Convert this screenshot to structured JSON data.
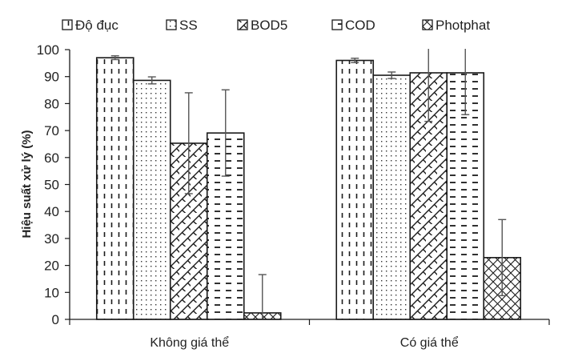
{
  "chart_data": {
    "type": "bar",
    "title": "",
    "xlabel": "",
    "ylabel": "Hiệu suất xử lý (%)",
    "ylim": [
      0,
      100
    ],
    "yticks": [
      0,
      10,
      20,
      30,
      40,
      50,
      60,
      70,
      80,
      90,
      100
    ],
    "ytick_labels": [
      "0",
      "10",
      "20",
      "30",
      "40",
      "50",
      "60",
      "70",
      "80",
      "90",
      "100"
    ],
    "grid": false,
    "legend_position": "top",
    "categories": [
      "Không giá thể",
      "Có giá thể"
    ],
    "series": [
      {
        "name": "Độ đục",
        "pattern": "vertical-dash",
        "values": [
          97.0,
          96.0
        ],
        "errors": [
          0.7,
          0.8
        ]
      },
      {
        "name": "SS",
        "pattern": "dots",
        "values": [
          88.6,
          90.5
        ],
        "errors": [
          1.3,
          1.2
        ]
      },
      {
        "name": "BOD5",
        "pattern": "brick-diagonal",
        "values": [
          65.3,
          91.4
        ],
        "errors": [
          18.7,
          18.0
        ]
      },
      {
        "name": "COD",
        "pattern": "horizontal-dash",
        "values": [
          69.1,
          91.4
        ],
        "errors": [
          16.0,
          15.5
        ]
      },
      {
        "name": "Photphat",
        "pattern": "crosshatch",
        "values": [
          2.4,
          22.9
        ],
        "errors": [
          14.2,
          14.1
        ]
      }
    ],
    "colors": {
      "stroke": "#1a1a1a",
      "error_bar": "#555555",
      "background": "#ffffff"
    }
  }
}
